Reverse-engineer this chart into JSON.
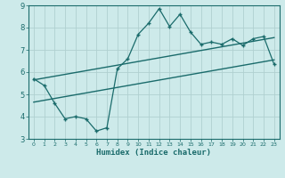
{
  "xlabel": "Humidex (Indice chaleur)",
  "xlim": [
    -0.5,
    23.5
  ],
  "ylim": [
    3,
    9
  ],
  "xticks": [
    0,
    1,
    2,
    3,
    4,
    5,
    6,
    7,
    8,
    9,
    10,
    11,
    12,
    13,
    14,
    15,
    16,
    17,
    18,
    19,
    20,
    21,
    22,
    23
  ],
  "yticks": [
    3,
    4,
    5,
    6,
    7,
    8,
    9
  ],
  "bg_color": "#cdeaea",
  "line_color": "#1a6b6b",
  "grid_color": "#b0d0d0",
  "data_x": [
    0,
    1,
    2,
    3,
    4,
    5,
    6,
    7,
    8,
    9,
    10,
    11,
    12,
    13,
    14,
    15,
    16,
    17,
    18,
    19,
    20,
    21,
    22,
    23
  ],
  "data_y": [
    5.7,
    5.4,
    4.6,
    3.9,
    4.0,
    3.9,
    3.35,
    3.5,
    6.15,
    6.6,
    7.7,
    8.2,
    8.85,
    8.05,
    8.6,
    7.8,
    7.25,
    7.35,
    7.25,
    7.5,
    7.2,
    7.5,
    7.6,
    6.35
  ],
  "upper_line_x": [
    0,
    23
  ],
  "upper_line_y": [
    5.65,
    7.55
  ],
  "lower_line_x": [
    0,
    23
  ],
  "lower_line_y": [
    4.65,
    6.55
  ]
}
